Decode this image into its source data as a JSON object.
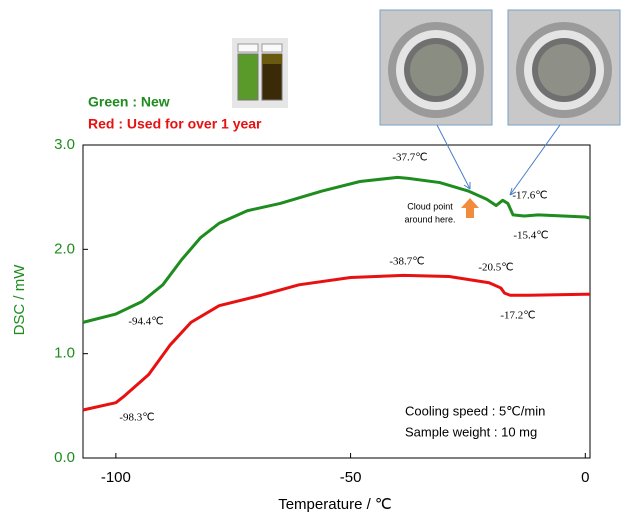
{
  "chart_data": {
    "type": "line",
    "x_label": "Temperature / ℃",
    "y_label": "DSC / mW",
    "xlim": [
      -107,
      1
    ],
    "ylim": [
      0,
      3
    ],
    "xticks": [
      -100,
      -50,
      0
    ],
    "yticks": [
      {
        "value": 0,
        "label": "0.0"
      },
      {
        "value": 1,
        "label": "1.0"
      },
      {
        "value": 2,
        "label": "2.0"
      },
      {
        "value": 3,
        "label": "3.0"
      }
    ],
    "series": [
      {
        "name": "Green : New",
        "color": "#1e8c1e",
        "x": [
          -107,
          -100,
          -94.4,
          -90,
          -86,
          -82,
          -78,
          -72,
          -65,
          -56,
          -48,
          -40,
          -37.7,
          -31,
          -25,
          -21,
          -19,
          -17.6,
          -16.5,
          -15.4,
          -13,
          -10,
          0,
          1
        ],
        "values": [
          1.3,
          1.38,
          1.5,
          1.66,
          1.9,
          2.11,
          2.25,
          2.37,
          2.44,
          2.56,
          2.65,
          2.69,
          2.68,
          2.64,
          2.56,
          2.48,
          2.42,
          2.47,
          2.44,
          2.33,
          2.32,
          2.33,
          2.31,
          2.3
        ]
      },
      {
        "name": "Red : Used for over 1 year",
        "color": "#e81010",
        "x": [
          -107,
          -100,
          -98.3,
          -93,
          -88.5,
          -84,
          -78,
          -69,
          -61,
          -50,
          -38.7,
          -29,
          -20.5,
          -18,
          -17.2,
          -16,
          -12,
          0,
          1
        ],
        "values": [
          0.46,
          0.53,
          0.59,
          0.8,
          1.08,
          1.3,
          1.46,
          1.56,
          1.66,
          1.73,
          1.75,
          1.74,
          1.68,
          1.63,
          1.58,
          1.56,
          1.56,
          1.57,
          1.57
        ]
      }
    ],
    "annotations": [
      "-37.7℃",
      "-17.6℃",
      "-15.4℃",
      "-94.4℃",
      "-38.7℃",
      "-20.5℃",
      "-17.2℃",
      "-98.3℃"
    ],
    "cloud_note": [
      "Cloud point",
      "around here."
    ],
    "notes": [
      "Cooling speed : 5℃/min",
      "Sample weight : 10 mg"
    ]
  }
}
